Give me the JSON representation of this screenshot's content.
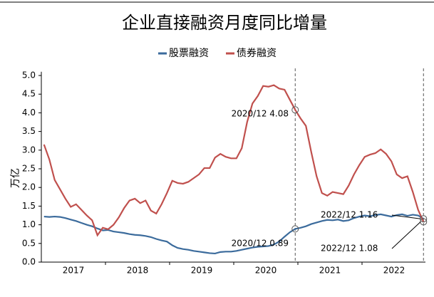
{
  "chart_data": {
    "type": "line",
    "title": "企业直接融资月度同比增量",
    "y_label": "万亿",
    "categories": [
      null,
      null,
      null,
      null,
      null,
      "2017",
      null,
      null,
      null,
      null,
      null,
      null,
      null,
      null,
      null,
      null,
      null,
      "2018",
      null,
      null,
      null,
      null,
      null,
      null,
      null,
      null,
      null,
      null,
      null,
      "2019",
      null,
      null,
      null,
      null,
      null,
      null,
      null,
      null,
      null,
      null,
      null,
      "2020",
      null,
      null,
      null,
      null,
      null,
      null,
      null,
      null,
      null,
      null,
      null,
      "2021",
      null,
      null,
      null,
      null,
      null,
      null,
      null,
      null,
      null,
      null,
      null,
      "2022",
      null,
      null,
      null,
      null,
      null,
      null
    ],
    "series": [
      {
        "name": "股票融资",
        "color": "#3b6b9c",
        "values": [
          1.22,
          1.21,
          1.22,
          1.21,
          1.18,
          1.14,
          1.1,
          1.05,
          1.0,
          0.96,
          0.9,
          0.85,
          0.86,
          0.82,
          0.8,
          0.78,
          0.75,
          0.73,
          0.72,
          0.7,
          0.67,
          0.62,
          0.58,
          0.55,
          0.45,
          0.38,
          0.35,
          0.33,
          0.3,
          0.28,
          0.26,
          0.24,
          0.23,
          0.27,
          0.28,
          0.28,
          0.3,
          0.33,
          0.36,
          0.39,
          0.41,
          0.42,
          0.43,
          0.47,
          0.55,
          0.68,
          0.8,
          0.89,
          0.92,
          0.96,
          1.02,
          1.06,
          1.1,
          1.13,
          1.12,
          1.14,
          1.1,
          1.12,
          1.18,
          1.22,
          1.25,
          1.23,
          1.26,
          1.28,
          1.25,
          1.22,
          1.26,
          1.28,
          1.24,
          1.27,
          1.25,
          1.16
        ]
      },
      {
        "name": "债券融资",
        "color": "#c0504d",
        "values": [
          3.15,
          2.75,
          2.2,
          1.95,
          1.7,
          1.48,
          1.55,
          1.4,
          1.25,
          1.12,
          0.72,
          0.92,
          0.88,
          1.0,
          1.2,
          1.45,
          1.65,
          1.7,
          1.58,
          1.65,
          1.38,
          1.3,
          1.55,
          1.85,
          2.18,
          2.12,
          2.1,
          2.15,
          2.25,
          2.35,
          2.52,
          2.52,
          2.8,
          2.9,
          2.82,
          2.78,
          2.78,
          3.05,
          3.75,
          4.25,
          4.45,
          4.72,
          4.7,
          4.74,
          4.65,
          4.62,
          4.35,
          4.08,
          3.85,
          3.65,
          2.95,
          2.3,
          1.85,
          1.78,
          1.88,
          1.85,
          1.82,
          2.05,
          2.35,
          2.6,
          2.82,
          2.88,
          2.92,
          3.02,
          2.9,
          2.7,
          2.35,
          2.25,
          2.3,
          1.88,
          1.4,
          1.08
        ]
      }
    ],
    "annotations": [
      "2020/12 4.08",
      "2020/12 0.89",
      "2022/12 1.16",
      "2022/12 1.08"
    ],
    "ylim": [
      0,
      5.1
    ],
    "yticks": [
      {
        "value": 0,
        "label": "0.0"
      },
      0.5,
      {
        "value": 1,
        "label": "1.0"
      },
      1.5,
      {
        "value": 2,
        "label": "2.0"
      },
      2.5,
      {
        "value": 3,
        "label": "3.0"
      },
      3.5,
      {
        "value": 4,
        "label": "4.0"
      },
      4.5,
      {
        "value": 5,
        "label": "5.0"
      }
    ],
    "legend": "top"
  }
}
